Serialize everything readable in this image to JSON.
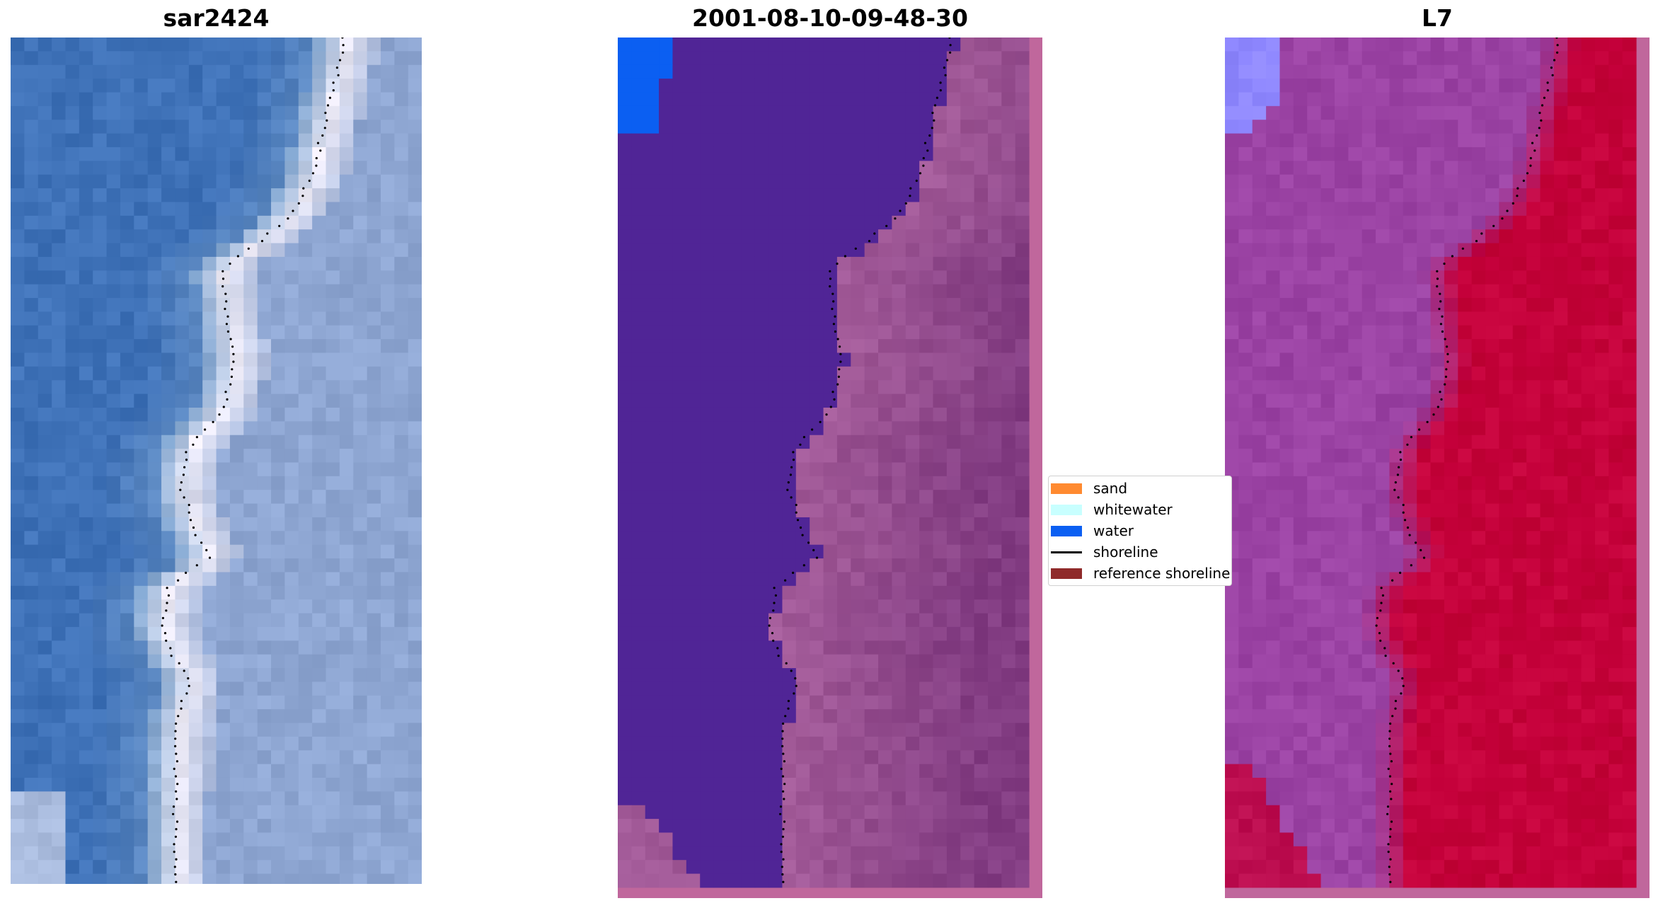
{
  "panels": [
    {
      "title": "sar2424",
      "kind": "rgb",
      "colors": {
        "water": "#3f72b8",
        "mid": "#7aa0cc",
        "foam": "#f2eef8",
        "land": "#8ea6d2"
      }
    },
    {
      "title": "2001-08-10-09-48-30",
      "kind": "class",
      "colors": {
        "water_class": "#502596",
        "water_edge": "#0b5ff2",
        "land_class": "#a25a98",
        "frame": "#c0679c"
      }
    },
    {
      "title": "L7",
      "kind": "index",
      "colors": {
        "low": "#9b43a4",
        "edge": "#8a80ff",
        "high": "#c4003a",
        "frame": "#c0679c"
      }
    }
  ],
  "legend": {
    "items": [
      {
        "label": "sand",
        "color": "#ff8a30",
        "type": "patch"
      },
      {
        "label": "whitewater",
        "color": "#c8ffff",
        "type": "patch"
      },
      {
        "label": "water",
        "color": "#0b5ff2",
        "type": "patch"
      },
      {
        "label": "shoreline",
        "color": "#000000",
        "type": "line"
      },
      {
        "label": "reference shoreline",
        "color": "#8f2a2a",
        "type": "patch"
      }
    ]
  },
  "shoreline_style": {
    "color": "#000000",
    "pattern": "dotted"
  }
}
